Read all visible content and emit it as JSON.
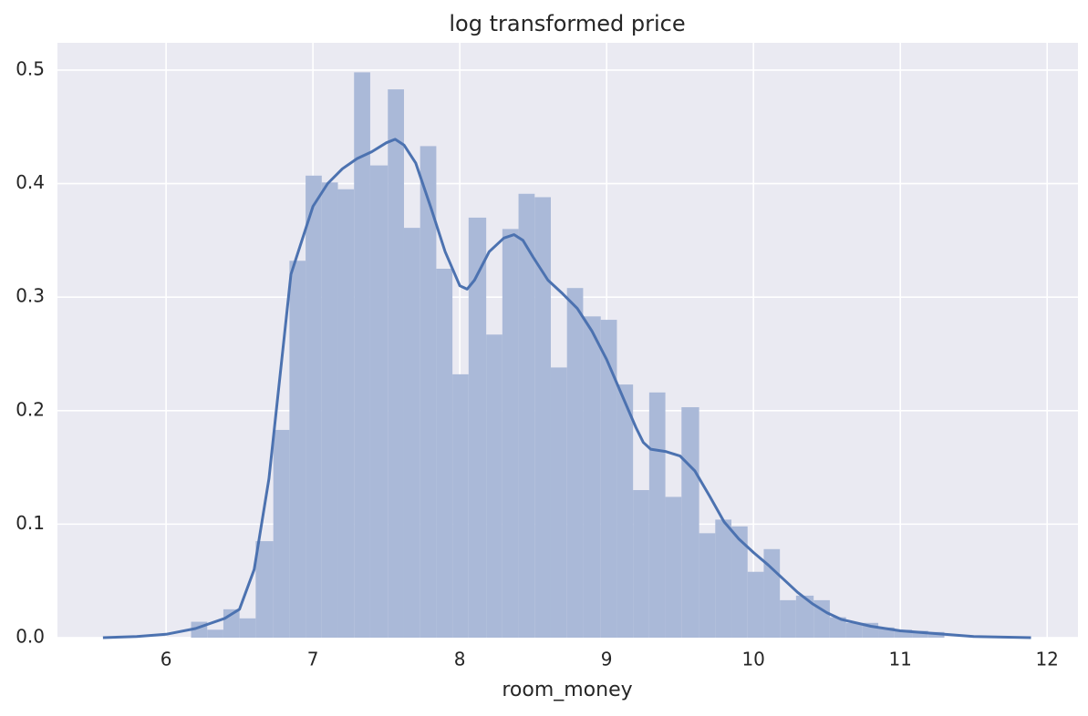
{
  "chart_data": {
    "type": "histogram",
    "title": "log transformed price",
    "xlabel": "room_money",
    "bins": [
      6.17,
      6.28,
      6.39,
      6.5,
      6.61,
      6.73,
      6.84,
      6.95,
      7.06,
      7.17,
      7.28,
      7.39,
      7.51,
      7.62,
      7.73,
      7.84,
      7.95,
      8.06,
      8.18,
      8.29,
      8.4,
      8.51,
      8.62,
      8.73,
      8.84,
      8.96,
      9.07,
      9.18,
      9.29,
      9.4,
      9.51,
      9.63,
      9.74,
      9.85,
      9.96,
      10.07,
      10.18,
      10.29,
      10.41,
      10.52,
      10.63,
      10.74,
      10.85,
      10.96,
      11.08,
      11.19,
      11.3
    ],
    "values": [
      0.014,
      0.007,
      0.025,
      0.017,
      0.085,
      0.183,
      0.332,
      0.407,
      0.401,
      0.395,
      0.498,
      0.416,
      0.483,
      0.361,
      0.433,
      0.325,
      0.232,
      0.37,
      0.267,
      0.36,
      0.391,
      0.388,
      0.238,
      0.308,
      0.283,
      0.28,
      0.223,
      0.13,
      0.216,
      0.124,
      0.203,
      0.092,
      0.104,
      0.098,
      0.058,
      0.078,
      0.033,
      0.037,
      0.033,
      0.018,
      0.013,
      0.013,
      0.009,
      0.007,
      0.006,
      0.005
    ],
    "color": "#aab9d8",
    "kde": {
      "color": "#4c72b0",
      "x": [
        5.57,
        5.8,
        6.0,
        6.2,
        6.4,
        6.5,
        6.6,
        6.7,
        6.8,
        6.85,
        6.95,
        7.0,
        7.1,
        7.2,
        7.3,
        7.4,
        7.5,
        7.56,
        7.62,
        7.7,
        7.8,
        7.9,
        8.0,
        8.05,
        8.1,
        8.2,
        8.3,
        8.37,
        8.43,
        8.5,
        8.6,
        8.7,
        8.8,
        8.9,
        9.0,
        9.1,
        9.2,
        9.25,
        9.3,
        9.4,
        9.5,
        9.6,
        9.7,
        9.8,
        9.9,
        10.0,
        10.1,
        10.2,
        10.3,
        10.4,
        10.5,
        10.6,
        10.8,
        11.0,
        11.2,
        11.5,
        11.89
      ],
      "values": [
        0,
        0.001,
        0.003,
        0.008,
        0.017,
        0.025,
        0.06,
        0.14,
        0.26,
        0.32,
        0.36,
        0.38,
        0.4,
        0.413,
        0.422,
        0.428,
        0.436,
        0.439,
        0.434,
        0.418,
        0.38,
        0.34,
        0.31,
        0.307,
        0.315,
        0.34,
        0.352,
        0.355,
        0.35,
        0.335,
        0.315,
        0.303,
        0.29,
        0.27,
        0.245,
        0.215,
        0.185,
        0.172,
        0.166,
        0.164,
        0.16,
        0.147,
        0.125,
        0.102,
        0.087,
        0.075,
        0.064,
        0.052,
        0.04,
        0.03,
        0.022,
        0.016,
        0.01,
        0.006,
        0.004,
        0.001,
        0
      ]
    },
    "xlim": [
      5.26,
      12.21
    ],
    "ylim": [
      0,
      0.524
    ],
    "xticks": [
      6,
      7,
      8,
      9,
      10,
      11,
      12
    ],
    "yticks": [
      {
        "value": 0,
        "label": "0.0"
      },
      0.1,
      0.2,
      0.3,
      0.4,
      0.5
    ],
    "grid": true
  }
}
